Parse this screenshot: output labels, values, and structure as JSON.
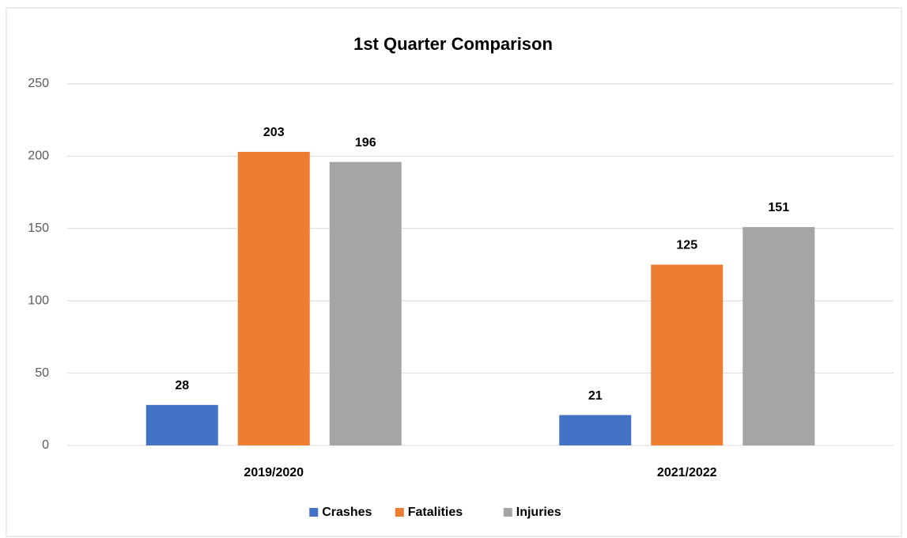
{
  "chart_data": {
    "type": "bar",
    "title": "1st Quarter Comparison",
    "categories": [
      "2019/2020",
      "2021/2022"
    ],
    "series": [
      {
        "name": "Crashes",
        "color": "#4472c4",
        "values": [
          28,
          21
        ]
      },
      {
        "name": "Fatalities",
        "color": "#ed7d31",
        "values": [
          203,
          125
        ]
      },
      {
        "name": "Injuries",
        "color": "#a5a5a5",
        "values": [
          196,
          151
        ]
      }
    ],
    "ylim": [
      0,
      250
    ],
    "yticks": [
      0,
      50,
      100,
      150,
      200,
      250
    ],
    "grid": true,
    "legend": "bottom"
  }
}
